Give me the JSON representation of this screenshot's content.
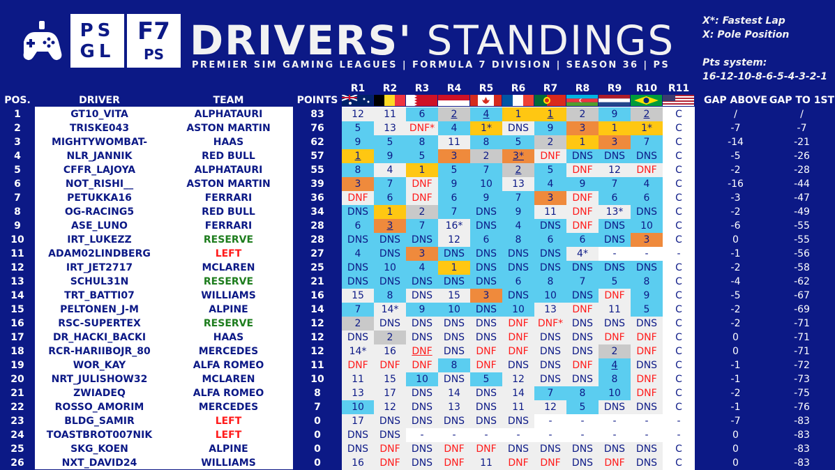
{
  "header": {
    "title_bold": "DRIVERS'",
    "title_light": "STANDINGS",
    "subtitle": "PREMIER SIM GAMING LEAGUES | FORMULA 7 DIVISION | SEASON 36 | PS",
    "logo_psgl_line1": "PS",
    "logo_psgl_line2": "GL",
    "logo_f7_line1": "F7",
    "logo_f7_line2": "PS",
    "controller_icon": "gamepad-icon"
  },
  "legend": {
    "fastest_lap": "X*: Fastest Lap",
    "pole": "X:  Pole Position",
    "pts_label": "Pts system:",
    "pts_values": "16-12-10-8-6-5-4-3-2-1"
  },
  "columns": {
    "pos": "POS.",
    "driver": "DRIVER",
    "team": "TEAM",
    "points": "POINTS",
    "gap_above": "GAP ABOVE",
    "gap_first": "GAP TO 1ST"
  },
  "races": [
    "R1",
    "R2",
    "R3",
    "R4",
    "R5",
    "R6",
    "R7",
    "R8",
    "R9",
    "R10",
    "R11"
  ],
  "flags": [
    "australia",
    "belgium",
    "bahrain",
    "monaco",
    "canada",
    "france",
    "portugal",
    "azerbaijan",
    "netherlands",
    "brazil",
    "usa"
  ],
  "colors": {
    "background": "#0c1986",
    "grey": "#c9c9c9",
    "lightgrey": "#efefef",
    "cyan": "#5bcdf0",
    "gold": "#ffc712",
    "orange": "#ef8a3c",
    "red": "#ff1a1a",
    "green": "#1e7d1e",
    "navy": "#0c1986"
  },
  "rows": [
    {
      "pos": "1",
      "driver": "GT10_VITA",
      "team": "ALPHATAURI",
      "tc": "n",
      "pts": "83",
      "r": [
        "12",
        "11",
        "6",
        "2",
        "4",
        "1",
        "1",
        "2",
        "9",
        "2",
        "C"
      ],
      "c": [
        "lg",
        "lg",
        "cy",
        "gr",
        "cy",
        "go",
        "go",
        "gr",
        "cy",
        "gr",
        "w"
      ],
      "u": [
        3,
        4,
        6,
        9
      ],
      "ga": "/",
      "g1": "/"
    },
    {
      "pos": "2",
      "driver": "TRISKE043",
      "team": "ASTON MARTIN",
      "tc": "n",
      "pts": "76",
      "r": [
        "5",
        "13",
        "DNF*",
        "4",
        "1*",
        "DNS",
        "9",
        "3",
        "1",
        "1*",
        "C"
      ],
      "c": [
        "cy",
        "lg",
        "lg",
        "cy",
        "go",
        "lg",
        "cy",
        "or",
        "go",
        "go",
        "w"
      ],
      "u": [],
      "ga": "-7",
      "g1": "-7"
    },
    {
      "pos": "3",
      "driver": "MIGHTYWOMBAT-",
      "team": "HAAS",
      "tc": "n",
      "pts": "62",
      "r": [
        "9",
        "5",
        "8",
        "11",
        "8",
        "5",
        "2",
        "1",
        "3",
        "7",
        "C"
      ],
      "c": [
        "cy",
        "cy",
        "cy",
        "lg",
        "cy",
        "cy",
        "gr",
        "go",
        "or",
        "cy",
        "w"
      ],
      "u": [],
      "ga": "-14",
      "g1": "-21"
    },
    {
      "pos": "4",
      "driver": "NLR_JANNIK",
      "team": "RED BULL",
      "tc": "n",
      "pts": "57",
      "r": [
        "1",
        "9",
        "5",
        "3",
        "2",
        "3*",
        "DNF",
        "DNS",
        "DNS",
        "DNS",
        "C"
      ],
      "c": [
        "go",
        "cy",
        "cy",
        "or",
        "gr",
        "or",
        "lg",
        "cy",
        "cy",
        "cy",
        "w"
      ],
      "u": [
        0,
        5
      ],
      "ga": "-5",
      "g1": "-26"
    },
    {
      "pos": "5",
      "driver": "CFFR_LAJOYA",
      "team": "ALPHATAURI",
      "tc": "n",
      "pts": "55",
      "r": [
        "8",
        "4",
        "1",
        "5",
        "7",
        "2",
        "5",
        "DNF",
        "12",
        "DNF",
        "C"
      ],
      "c": [
        "cy",
        "lg",
        "go",
        "cy",
        "cy",
        "gr",
        "cy",
        "lg",
        "lg",
        "lg",
        "w"
      ],
      "u": [
        5
      ],
      "ga": "-2",
      "g1": "-28"
    },
    {
      "pos": "6",
      "driver": "NOT_RISHI__",
      "team": "ASTON MARTIN",
      "tc": "n",
      "pts": "39",
      "r": [
        "3",
        "7",
        "DNF",
        "9",
        "10",
        "13",
        "4",
        "9",
        "7",
        "4",
        "C"
      ],
      "c": [
        "or",
        "cy",
        "lg",
        "cy",
        "cy",
        "lg",
        "cy",
        "cy",
        "cy",
        "cy",
        "w"
      ],
      "u": [],
      "ga": "-16",
      "g1": "-44"
    },
    {
      "pos": "7",
      "driver": "PETUKKA16",
      "team": "FERRARI",
      "tc": "n",
      "pts": "36",
      "r": [
        "DNF",
        "6",
        "DNF",
        "6",
        "9",
        "7",
        "3",
        "DNF",
        "6",
        "6",
        "C"
      ],
      "c": [
        "lg",
        "cy",
        "lg",
        "cy",
        "cy",
        "cy",
        "or",
        "lg",
        "cy",
        "cy",
        "w"
      ],
      "u": [],
      "ga": "-3",
      "g1": "-47"
    },
    {
      "pos": "8",
      "driver": "OG-RACING5",
      "team": "RED BULL",
      "tc": "n",
      "pts": "34",
      "r": [
        "DNS",
        "1",
        "2",
        "7",
        "DNS",
        "9",
        "11",
        "DNF",
        "13*",
        "DNS",
        "C"
      ],
      "c": [
        "cy",
        "go",
        "gr",
        "cy",
        "cy",
        "cy",
        "lg",
        "lg",
        "lg",
        "cy",
        "w"
      ],
      "u": [],
      "ga": "-2",
      "g1": "-49"
    },
    {
      "pos": "9",
      "driver": "ASE_LUNO",
      "team": "FERRARI",
      "tc": "n",
      "pts": "28",
      "r": [
        "6",
        "3",
        "7",
        "16*",
        "DNS",
        "4",
        "DNS",
        "DNF",
        "DNS",
        "10",
        "C"
      ],
      "c": [
        "cy",
        "or",
        "cy",
        "lg",
        "cy",
        "cy",
        "cy",
        "lg",
        "cy",
        "cy",
        "w"
      ],
      "u": [
        1
      ],
      "ga": "-6",
      "g1": "-55"
    },
    {
      "pos": "10",
      "driver": "IRT_LUKEZZ",
      "team": "RESERVE",
      "tc": "g",
      "pts": "28",
      "r": [
        "DNS",
        "DNS",
        "DNS",
        "12",
        "6",
        "8",
        "6",
        "6",
        "DNS",
        "3",
        "C"
      ],
      "c": [
        "cy",
        "cy",
        "cy",
        "lg",
        "cy",
        "cy",
        "cy",
        "cy",
        "cy",
        "or",
        "w"
      ],
      "u": [],
      "ga": "0",
      "g1": "-55"
    },
    {
      "pos": "11",
      "driver": "ADAM02LINDBERG",
      "team": "LEFT",
      "tc": "r",
      "pts": "27",
      "r": [
        "4",
        "DNS",
        "3",
        "DNS",
        "DNS",
        "DNS",
        "DNS",
        "4*",
        "-",
        "-",
        "-"
      ],
      "c": [
        "cy",
        "cy",
        "or",
        "cy",
        "cy",
        "cy",
        "cy",
        "lg",
        "w",
        "w",
        "w"
      ],
      "u": [],
      "ga": "-1",
      "g1": "-56"
    },
    {
      "pos": "12",
      "driver": "IRT_JET2717",
      "team": "MCLAREN",
      "tc": "n",
      "pts": "25",
      "r": [
        "DNS",
        "10",
        "4",
        "1",
        "DNS",
        "DNS",
        "DNS",
        "DNS",
        "DNS",
        "DNS",
        "C"
      ],
      "c": [
        "cy",
        "cy",
        "cy",
        "go",
        "cy",
        "cy",
        "cy",
        "cy",
        "cy",
        "cy",
        "w"
      ],
      "u": [],
      "ga": "-2",
      "g1": "-58"
    },
    {
      "pos": "13",
      "driver": "SCHUL31N",
      "team": "RESERVE",
      "tc": "g",
      "pts": "21",
      "r": [
        "DNS",
        "DNS",
        "DNS",
        "DNS",
        "DNS",
        "6",
        "8",
        "7",
        "5",
        "8",
        "C"
      ],
      "c": [
        "cy",
        "cy",
        "cy",
        "cy",
        "cy",
        "cy",
        "cy",
        "cy",
        "cy",
        "cy",
        "w"
      ],
      "u": [],
      "ga": "-4",
      "g1": "-62"
    },
    {
      "pos": "14",
      "driver": "TRT_BATTI07",
      "team": "WILLIAMS",
      "tc": "n",
      "pts": "16",
      "r": [
        "15",
        "8",
        "DNS",
        "15",
        "3",
        "DNS",
        "10",
        "DNS",
        "DNF",
        "9",
        "C"
      ],
      "c": [
        "lg",
        "cy",
        "lg",
        "lg",
        "or",
        "cy",
        "cy",
        "cy",
        "lg",
        "cy",
        "w"
      ],
      "u": [],
      "ga": "-5",
      "g1": "-67"
    },
    {
      "pos": "15",
      "driver": "PELTONEN_J-M",
      "team": "ALPINE",
      "tc": "n",
      "pts": "14",
      "r": [
        "7",
        "14*",
        "9",
        "10",
        "DNS",
        "10",
        "13",
        "DNF",
        "11",
        "5",
        "C"
      ],
      "c": [
        "cy",
        "lg",
        "cy",
        "cy",
        "cy",
        "cy",
        "lg",
        "lg",
        "lg",
        "cy",
        "w"
      ],
      "u": [],
      "ga": "-2",
      "g1": "-69"
    },
    {
      "pos": "16",
      "driver": "RSC-SUPERTEX",
      "team": "RESERVE",
      "tc": "g",
      "pts": "12",
      "r": [
        "2",
        "DNS",
        "DNS",
        "DNS",
        "DNS",
        "DNF",
        "DNF*",
        "DNS",
        "DNS",
        "DNS",
        "C"
      ],
      "c": [
        "gr",
        "lg",
        "lg",
        "lg",
        "lg",
        "lg",
        "lg",
        "lg",
        "lg",
        "lg",
        "w"
      ],
      "u": [],
      "ga": "-2",
      "g1": "-71"
    },
    {
      "pos": "17",
      "driver": "DR_HACKI_BACKI",
      "team": "HAAS",
      "tc": "n",
      "pts": "12",
      "r": [
        "DNS",
        "2",
        "DNS",
        "DNS",
        "DNS",
        "DNF",
        "DNS",
        "DNS",
        "DNF",
        "DNF",
        "C"
      ],
      "c": [
        "lg",
        "gr",
        "lg",
        "lg",
        "lg",
        "lg",
        "lg",
        "lg",
        "lg",
        "lg",
        "w"
      ],
      "u": [],
      "ga": "0",
      "g1": "-71"
    },
    {
      "pos": "18",
      "driver": "RCR-HARIIBOJR_80",
      "team": "MERCEDES",
      "tc": "n",
      "pts": "12",
      "r": [
        "14*",
        "16",
        "DNF",
        "DNS",
        "DNF",
        "DNF",
        "DNS",
        "DNS",
        "2",
        "DNF",
        "C"
      ],
      "c": [
        "lg",
        "lg",
        "lg",
        "lg",
        "lg",
        "lg",
        "lg",
        "lg",
        "gr",
        "lg",
        "w"
      ],
      "u": [
        2
      ],
      "ga": "0",
      "g1": "-71"
    },
    {
      "pos": "19",
      "driver": "WOR_KAY",
      "team": "ALFA ROMEO",
      "tc": "n",
      "pts": "11",
      "r": [
        "DNF",
        "DNF",
        "DNF",
        "8",
        "DNF",
        "DNS",
        "DNS",
        "DNF",
        "4",
        "DNS",
        "C"
      ],
      "c": [
        "lg",
        "lg",
        "lg",
        "cy",
        "lg",
        "lg",
        "lg",
        "lg",
        "cy",
        "lg",
        "w"
      ],
      "u": [
        8
      ],
      "ga": "-1",
      "g1": "-72"
    },
    {
      "pos": "20",
      "driver": "NRT_JULISHOW32",
      "team": "MCLAREN",
      "tc": "n",
      "pts": "10",
      "r": [
        "11",
        "15",
        "10",
        "DNS",
        "5",
        "12",
        "DNS",
        "DNS",
        "8",
        "DNF",
        "C"
      ],
      "c": [
        "lg",
        "lg",
        "cy",
        "lg",
        "cy",
        "lg",
        "lg",
        "lg",
        "cy",
        "lg",
        "w"
      ],
      "u": [],
      "ga": "-1",
      "g1": "-73"
    },
    {
      "pos": "21",
      "driver": "ZWIADEQ",
      "team": "ALFA ROMEO",
      "tc": "n",
      "pts": "8",
      "r": [
        "13",
        "17",
        "DNS",
        "14",
        "DNS",
        "14",
        "7",
        "8",
        "10",
        "DNF",
        "C"
      ],
      "c": [
        "lg",
        "lg",
        "lg",
        "lg",
        "lg",
        "lg",
        "cy",
        "cy",
        "cy",
        "lg",
        "w"
      ],
      "u": [],
      "ga": "-2",
      "g1": "-75"
    },
    {
      "pos": "22",
      "driver": "ROSSO_AMORIM",
      "team": "MERCEDES",
      "tc": "n",
      "pts": "7",
      "r": [
        "10",
        "12",
        "DNS",
        "13",
        "DNS",
        "11",
        "12",
        "5",
        "DNS",
        "DNS",
        "C"
      ],
      "c": [
        "cy",
        "lg",
        "lg",
        "lg",
        "lg",
        "lg",
        "lg",
        "cy",
        "lg",
        "lg",
        "w"
      ],
      "u": [],
      "ga": "-1",
      "g1": "-76"
    },
    {
      "pos": "23",
      "driver": "BLDG_SAMIR",
      "team": "LEFT",
      "tc": "r",
      "pts": "0",
      "r": [
        "17",
        "DNS",
        "DNS",
        "DNS",
        "DNS",
        "DNS",
        "-",
        "-",
        "-",
        "-",
        "-"
      ],
      "c": [
        "lg",
        "lg",
        "lg",
        "lg",
        "lg",
        "lg",
        "w",
        "w",
        "w",
        "w",
        "w"
      ],
      "u": [],
      "ga": "-7",
      "g1": "-83"
    },
    {
      "pos": "24",
      "driver": "TOASTBROT007NIK",
      "team": "LEFT",
      "tc": "r",
      "pts": "0",
      "r": [
        "DNS",
        "DNS",
        "-",
        "-",
        "-",
        "-",
        "-",
        "-",
        "-",
        "-",
        "-"
      ],
      "c": [
        "lg",
        "lg",
        "w",
        "w",
        "w",
        "w",
        "w",
        "w",
        "w",
        "w",
        "w"
      ],
      "u": [],
      "ga": "0",
      "g1": "-83"
    },
    {
      "pos": "25",
      "driver": "SKG_KOEN",
      "team": "ALPINE",
      "tc": "n",
      "pts": "0",
      "r": [
        "DNS",
        "DNF",
        "DNS",
        "DNF",
        "DNF",
        "DNS",
        "DNS",
        "DNS",
        "DNS",
        "DNS",
        "C"
      ],
      "c": [
        "lg",
        "lg",
        "lg",
        "lg",
        "lg",
        "lg",
        "lg",
        "lg",
        "lg",
        "lg",
        "w"
      ],
      "u": [],
      "ga": "0",
      "g1": "-83"
    },
    {
      "pos": "26",
      "driver": "NXT_DAVID24",
      "team": "WILLIAMS",
      "tc": "n",
      "pts": "0",
      "r": [
        "16",
        "DNF",
        "DNS",
        "DNF",
        "11",
        "DNF",
        "DNF",
        "DNS",
        "DNF",
        "DNS",
        "C"
      ],
      "c": [
        "lg",
        "lg",
        "lg",
        "lg",
        "lg",
        "lg",
        "lg",
        "lg",
        "lg",
        "lg",
        "w"
      ],
      "u": [],
      "ga": "0",
      "g1": "-83"
    }
  ]
}
